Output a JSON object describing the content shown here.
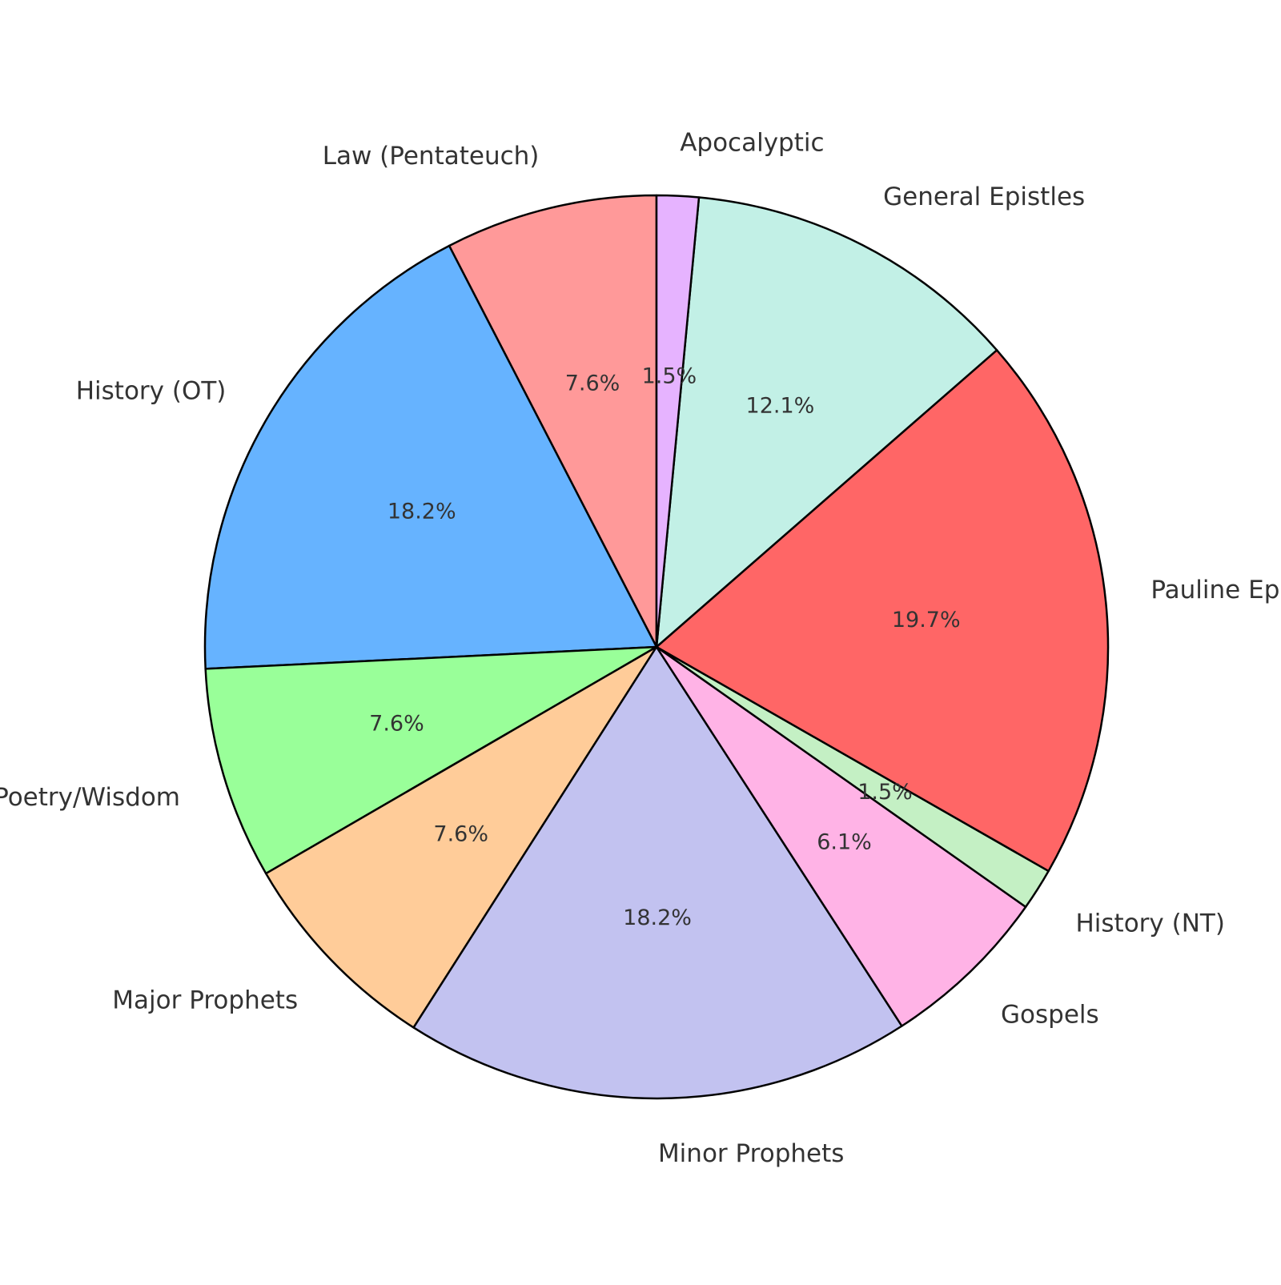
{
  "chart_data": {
    "type": "pie",
    "title": "",
    "start_angle_deg": 90,
    "direction": "counterclockwise",
    "slices": [
      {
        "label": "Law (Pentateuch)",
        "value": 7.6,
        "pct_label": "7.6%",
        "color": "#ff9999"
      },
      {
        "label": "History (OT)",
        "value": 18.2,
        "pct_label": "18.2%",
        "color": "#66b3ff"
      },
      {
        "label": "Poetry/Wisdom",
        "value": 7.6,
        "pct_label": "7.6%",
        "color": "#99ff99"
      },
      {
        "label": "Major Prophets",
        "value": 7.6,
        "pct_label": "7.6%",
        "color": "#ffcc99"
      },
      {
        "label": "Minor Prophets",
        "value": 18.2,
        "pct_label": "18.2%",
        "color": "#c2c2f0"
      },
      {
        "label": "Gospels",
        "value": 6.1,
        "pct_label": "6.1%",
        "color": "#ffb3e6"
      },
      {
        "label": "History (NT)",
        "value": 1.5,
        "pct_label": "1.5%",
        "color": "#c4f0c4"
      },
      {
        "label": "Pauline Epistles",
        "value": 19.7,
        "pct_label": "19.7%",
        "color": "#ff6666"
      },
      {
        "label": "General Epistles",
        "value": 12.1,
        "pct_label": "12.1%",
        "color": "#c2f0e6"
      },
      {
        "label": "Apocalyptic",
        "value": 1.5,
        "pct_label": "1.5%",
        "color": "#e6b3ff"
      }
    ]
  }
}
